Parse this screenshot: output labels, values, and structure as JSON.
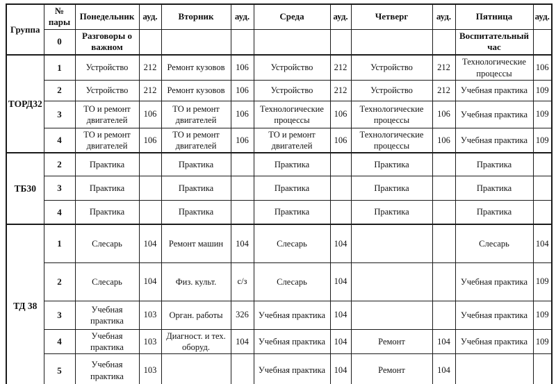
{
  "schedule": {
    "header": {
      "group_label": "Группа",
      "pair_label": "№ пары",
      "room_label": "ауд.",
      "days": [
        "Понедельник",
        "Вторник",
        "Среда",
        "Четверг",
        "Пятница"
      ]
    },
    "class_hour_row": {
      "num": "0",
      "monday": "Разговоры о важном",
      "friday": "Воспитательный час"
    },
    "groups": [
      {
        "name": "ТОРД32",
        "rows": [
          {
            "num": "1",
            "lessons": [
              {
                "subject": "Устройство",
                "room": "212"
              },
              {
                "subject": "Ремонт кузовов",
                "room": "106"
              },
              {
                "subject": "Устройство",
                "room": "212"
              },
              {
                "subject": "Устройство",
                "room": "212"
              },
              {
                "subject": "Технологические процессы",
                "room": "106"
              }
            ]
          },
          {
            "num": "2",
            "lessons": [
              {
                "subject": "Устройство",
                "room": "212"
              },
              {
                "subject": "Ремонт кузовов",
                "room": "106"
              },
              {
                "subject": "Устройство",
                "room": "212"
              },
              {
                "subject": "Устройство",
                "room": "212"
              },
              {
                "subject": "Учебная практика",
                "room": "109"
              }
            ]
          },
          {
            "num": "3",
            "lessons": [
              {
                "subject": "ТО и ремонт двигателей",
                "room": "106"
              },
              {
                "subject": "ТО и ремонт двигателей",
                "room": "106"
              },
              {
                "subject": "Технологические процессы",
                "room": "106"
              },
              {
                "subject": "Технологические процессы",
                "room": "106"
              },
              {
                "subject": "Учебная практика",
                "room": "109"
              }
            ]
          },
          {
            "num": "4",
            "lessons": [
              {
                "subject": "ТО и ремонт двигателей",
                "room": "106"
              },
              {
                "subject": "ТО и ремонт двигателей",
                "room": "106"
              },
              {
                "subject": "ТО и ремонт двигателей",
                "room": "106"
              },
              {
                "subject": "Технологические процессы",
                "room": "106"
              },
              {
                "subject": "Учебная практика",
                "room": "109"
              }
            ]
          }
        ]
      },
      {
        "name": "ТБ30",
        "rows": [
          {
            "num": "2",
            "lessons": [
              {
                "subject": "Практика",
                "room": ""
              },
              {
                "subject": "Практика",
                "room": ""
              },
              {
                "subject": "Практика",
                "room": ""
              },
              {
                "subject": "Практика",
                "room": ""
              },
              {
                "subject": "Практика",
                "room": ""
              }
            ]
          },
          {
            "num": "3",
            "lessons": [
              {
                "subject": "Практика",
                "room": ""
              },
              {
                "subject": "Практика",
                "room": ""
              },
              {
                "subject": "Практика",
                "room": ""
              },
              {
                "subject": "Практика",
                "room": ""
              },
              {
                "subject": "Практика",
                "room": ""
              }
            ]
          },
          {
            "num": "4",
            "lessons": [
              {
                "subject": "Практика",
                "room": ""
              },
              {
                "subject": "Практика",
                "room": ""
              },
              {
                "subject": "Практика",
                "room": ""
              },
              {
                "subject": "Практика",
                "room": ""
              },
              {
                "subject": "Практика",
                "room": ""
              }
            ]
          }
        ]
      },
      {
        "name": "ТД 38",
        "rows": [
          {
            "num": "1",
            "lessons": [
              {
                "subject": "Слесарь",
                "room": "104"
              },
              {
                "subject": "Ремонт машин",
                "room": "104"
              },
              {
                "subject": "Слесарь",
                "room": "104"
              },
              {
                "subject": "",
                "room": ""
              },
              {
                "subject": "Слесарь",
                "room": "104"
              }
            ]
          },
          {
            "num": "2",
            "lessons": [
              {
                "subject": "Слесарь",
                "room": "104"
              },
              {
                "subject": "Физ. культ.",
                "room": "с/з"
              },
              {
                "subject": "Слесарь",
                "room": "104"
              },
              {
                "subject": "",
                "room": ""
              },
              {
                "subject": "Учебная практика",
                "room": "109"
              }
            ]
          },
          {
            "num": "3",
            "lessons": [
              {
                "subject": "Учебная практика",
                "room": "103"
              },
              {
                "subject": "Орган. работы",
                "room": "326"
              },
              {
                "subject": "Учебная практика",
                "room": "104"
              },
              {
                "subject": "",
                "room": ""
              },
              {
                "subject": "Учебная практика",
                "room": "109"
              }
            ]
          },
          {
            "num": "4",
            "lessons": [
              {
                "subject": "Учебная практика",
                "room": "103"
              },
              {
                "subject": "Диагност. и тех. оборуд.",
                "room": "104"
              },
              {
                "subject": "Учебная практика",
                "room": "104"
              },
              {
                "subject": "Ремонт",
                "room": "104"
              },
              {
                "subject": "Учебная практика",
                "room": "109"
              }
            ]
          },
          {
            "num": "5",
            "lessons": [
              {
                "subject": "Учебная практика",
                "room": "103"
              },
              {
                "subject": "",
                "room": ""
              },
              {
                "subject": "Учебная практика",
                "room": "104"
              },
              {
                "subject": "Ремонт",
                "room": "104"
              },
              {
                "subject": "",
                "room": ""
              }
            ]
          }
        ]
      }
    ]
  }
}
